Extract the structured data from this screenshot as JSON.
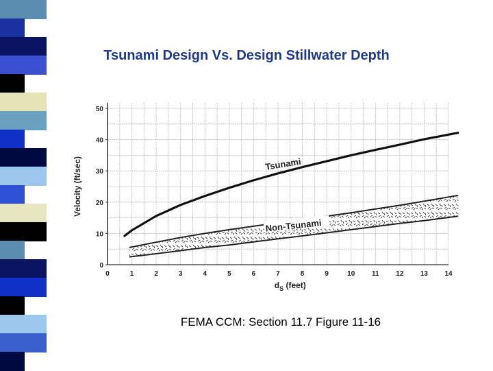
{
  "slide": {
    "title": "Tsunami Design Vs. Design Stillwater Depth",
    "caption": "FEMA CCM:  Section 11.7  Figure 11-16"
  },
  "colors": {
    "title": "#1f3a8a",
    "strip": [
      "#5b8db0",
      "#1a2fa0",
      "#0b1460",
      "#3a4fd0",
      "#000000",
      "#e6e2b8",
      "#6aa0c0",
      "#1030c8",
      "#000a40",
      "#9cc8ee",
      "#3050d8",
      "#e8e6c0",
      "#000000",
      "#5b8db0",
      "#0b1460",
      "#1030c8",
      "#000000",
      "#9cc8ee",
      "#3a5fcc",
      "#000a40"
    ]
  },
  "chart_data": {
    "type": "line",
    "xlabel": "d",
    "xlabel_sub": "S",
    "xlabel_unit": "(feet)",
    "ylabel": "Velocity  (ft/sec)",
    "xlim": [
      0,
      14
    ],
    "ylim": [
      0,
      50
    ],
    "x_ticks": [
      "0",
      "1",
      "2",
      "3",
      "4",
      "5",
      "6",
      "7",
      "8",
      "9",
      "10",
      "11",
      "12",
      "13",
      "14"
    ],
    "y_ticks": [
      "0",
      "10",
      "20",
      "30",
      "40",
      "50"
    ],
    "grid": true,
    "series": [
      {
        "name": "Tsunami",
        "x": [
          0.7,
          1,
          2,
          3,
          4,
          5,
          6,
          7,
          8,
          9,
          10,
          11,
          12,
          13,
          14.4
        ],
        "y": [
          9.2,
          11,
          15.6,
          19.1,
          22,
          24.6,
          27,
          29.2,
          31.2,
          33.1,
          35,
          36.7,
          38.4,
          40.1,
          42.2
        ]
      },
      {
        "name": "Non-Tsunami",
        "band": true,
        "x": [
          0.9,
          2,
          3,
          4,
          5,
          6,
          7,
          8,
          9,
          10,
          11,
          12,
          13,
          14.4
        ],
        "y_low": [
          2.5,
          3.5,
          4.5,
          5.5,
          6.3,
          7.3,
          8.3,
          9.2,
          10.2,
          11.2,
          12.2,
          13.2,
          14.1,
          15.5
        ],
        "y_high": [
          5.5,
          7.2,
          8.7,
          10,
          11.2,
          12.3,
          13.4,
          14.5,
          15.5,
          16.6,
          17.8,
          19,
          20.3,
          22.2
        ]
      }
    ]
  }
}
